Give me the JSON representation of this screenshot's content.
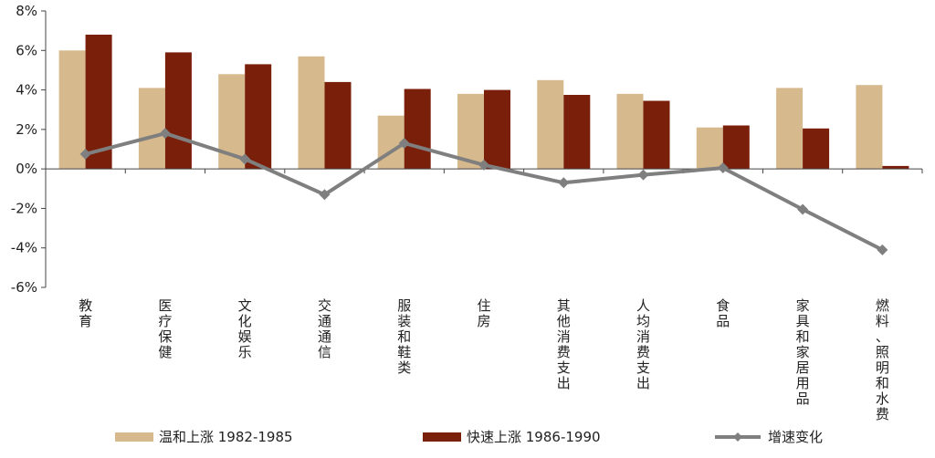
{
  "chart_data": {
    "type": "bar",
    "categories": [
      "教育",
      "医疗保健",
      "文化娱乐",
      "交通通信",
      "服装和鞋类",
      "住房",
      "其他消费支出",
      "人均消费支出",
      "食品",
      "家具和家居用品",
      "燃料、照明和水费"
    ],
    "series": [
      {
        "name": "温和上涨 1982-1985",
        "type": "bar",
        "color": "#d6b98c",
        "values": [
          6.0,
          4.1,
          4.8,
          5.7,
          2.7,
          3.8,
          4.5,
          3.8,
          2.1,
          4.1,
          4.25
        ]
      },
      {
        "name": "快速上涨 1986-1990",
        "type": "bar",
        "color": "#7a1f0a",
        "values": [
          6.8,
          5.9,
          5.3,
          4.4,
          4.05,
          4.0,
          3.75,
          3.45,
          2.2,
          2.05,
          0.15
        ]
      },
      {
        "name": "增速变化",
        "type": "line",
        "color": "#7f7f7f",
        "values": [
          0.75,
          1.8,
          0.5,
          -1.3,
          1.3,
          0.2,
          -0.7,
          -0.3,
          0.05,
          -2.05,
          -4.1
        ]
      }
    ],
    "ylim": [
      -6,
      8
    ],
    "yticks": [
      "8%",
      "6%",
      "4%",
      "2%",
      "0%",
      "-2%",
      "-4%",
      "-6%"
    ],
    "legend_position": "bottom",
    "grid": false
  }
}
